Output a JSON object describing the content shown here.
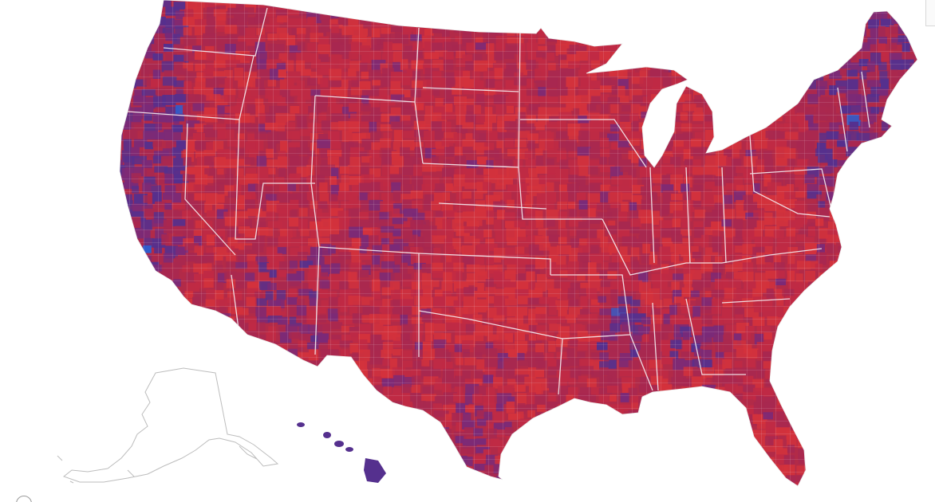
{
  "map": {
    "type": "county-choropleth",
    "palette": {
      "strong_red": "#d3323c",
      "red": "#c02a44",
      "magenta_red": "#a82850",
      "purple": "#7a2a78",
      "blue_purple": "#55308e",
      "blue": "#2c5fd0",
      "alaska_outline": "#bcbcbc",
      "boundary_lines": "#f4e9ee"
    },
    "regions": [
      "contiguous-us",
      "alaska",
      "hawaii"
    ],
    "alaska_style": "outline-only",
    "hawaii_color": "#55308e",
    "contiguous_style": "county-level red-to-blue shading with white state borders"
  }
}
